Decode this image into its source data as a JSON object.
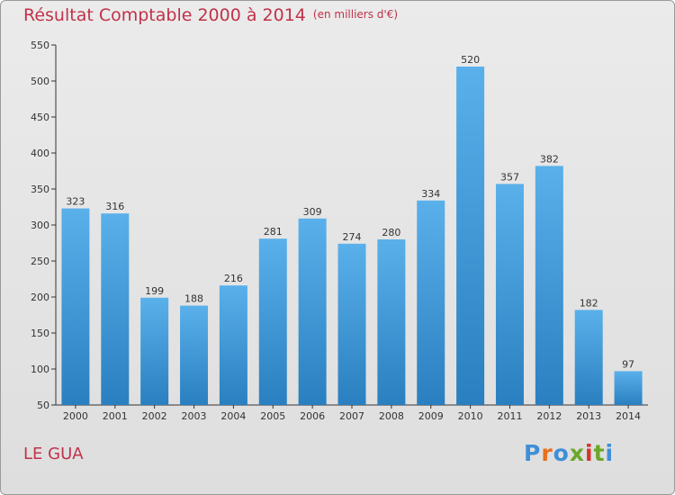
{
  "title": "Résultat Comptable 2000 à 2014",
  "subtitle": "(en milliers d'€)",
  "place": "LE GUA",
  "logo": {
    "text": "Proxiti",
    "colors": [
      "#3e8fd8",
      "#e86f1b",
      "#3e8fd8",
      "#6aa82a",
      "#d6332f",
      "#6aa82a",
      "#3e8fd8"
    ]
  },
  "colors": {
    "title": "#c0324a",
    "bar_light": "#5ab0ea",
    "bar_dark": "#2a7fc0",
    "axis": "#333333"
  },
  "chart_data": {
    "type": "bar",
    "title": "Résultat Comptable 2000 à 2014",
    "subtitle": "(en milliers d'€)",
    "categories": [
      "2000",
      "2001",
      "2002",
      "2003",
      "2004",
      "2005",
      "2006",
      "2007",
      "2008",
      "2009",
      "2010",
      "2011",
      "2012",
      "2013",
      "2014"
    ],
    "values": [
      323,
      316,
      199,
      188,
      216,
      281,
      309,
      274,
      280,
      334,
      520,
      357,
      382,
      182,
      97
    ],
    "ylim": [
      50,
      550
    ],
    "yticks": [
      50,
      100,
      150,
      200,
      250,
      300,
      350,
      400,
      450,
      500,
      550
    ],
    "xlabel": "",
    "ylabel": "",
    "grid": false,
    "data_labels": true
  }
}
